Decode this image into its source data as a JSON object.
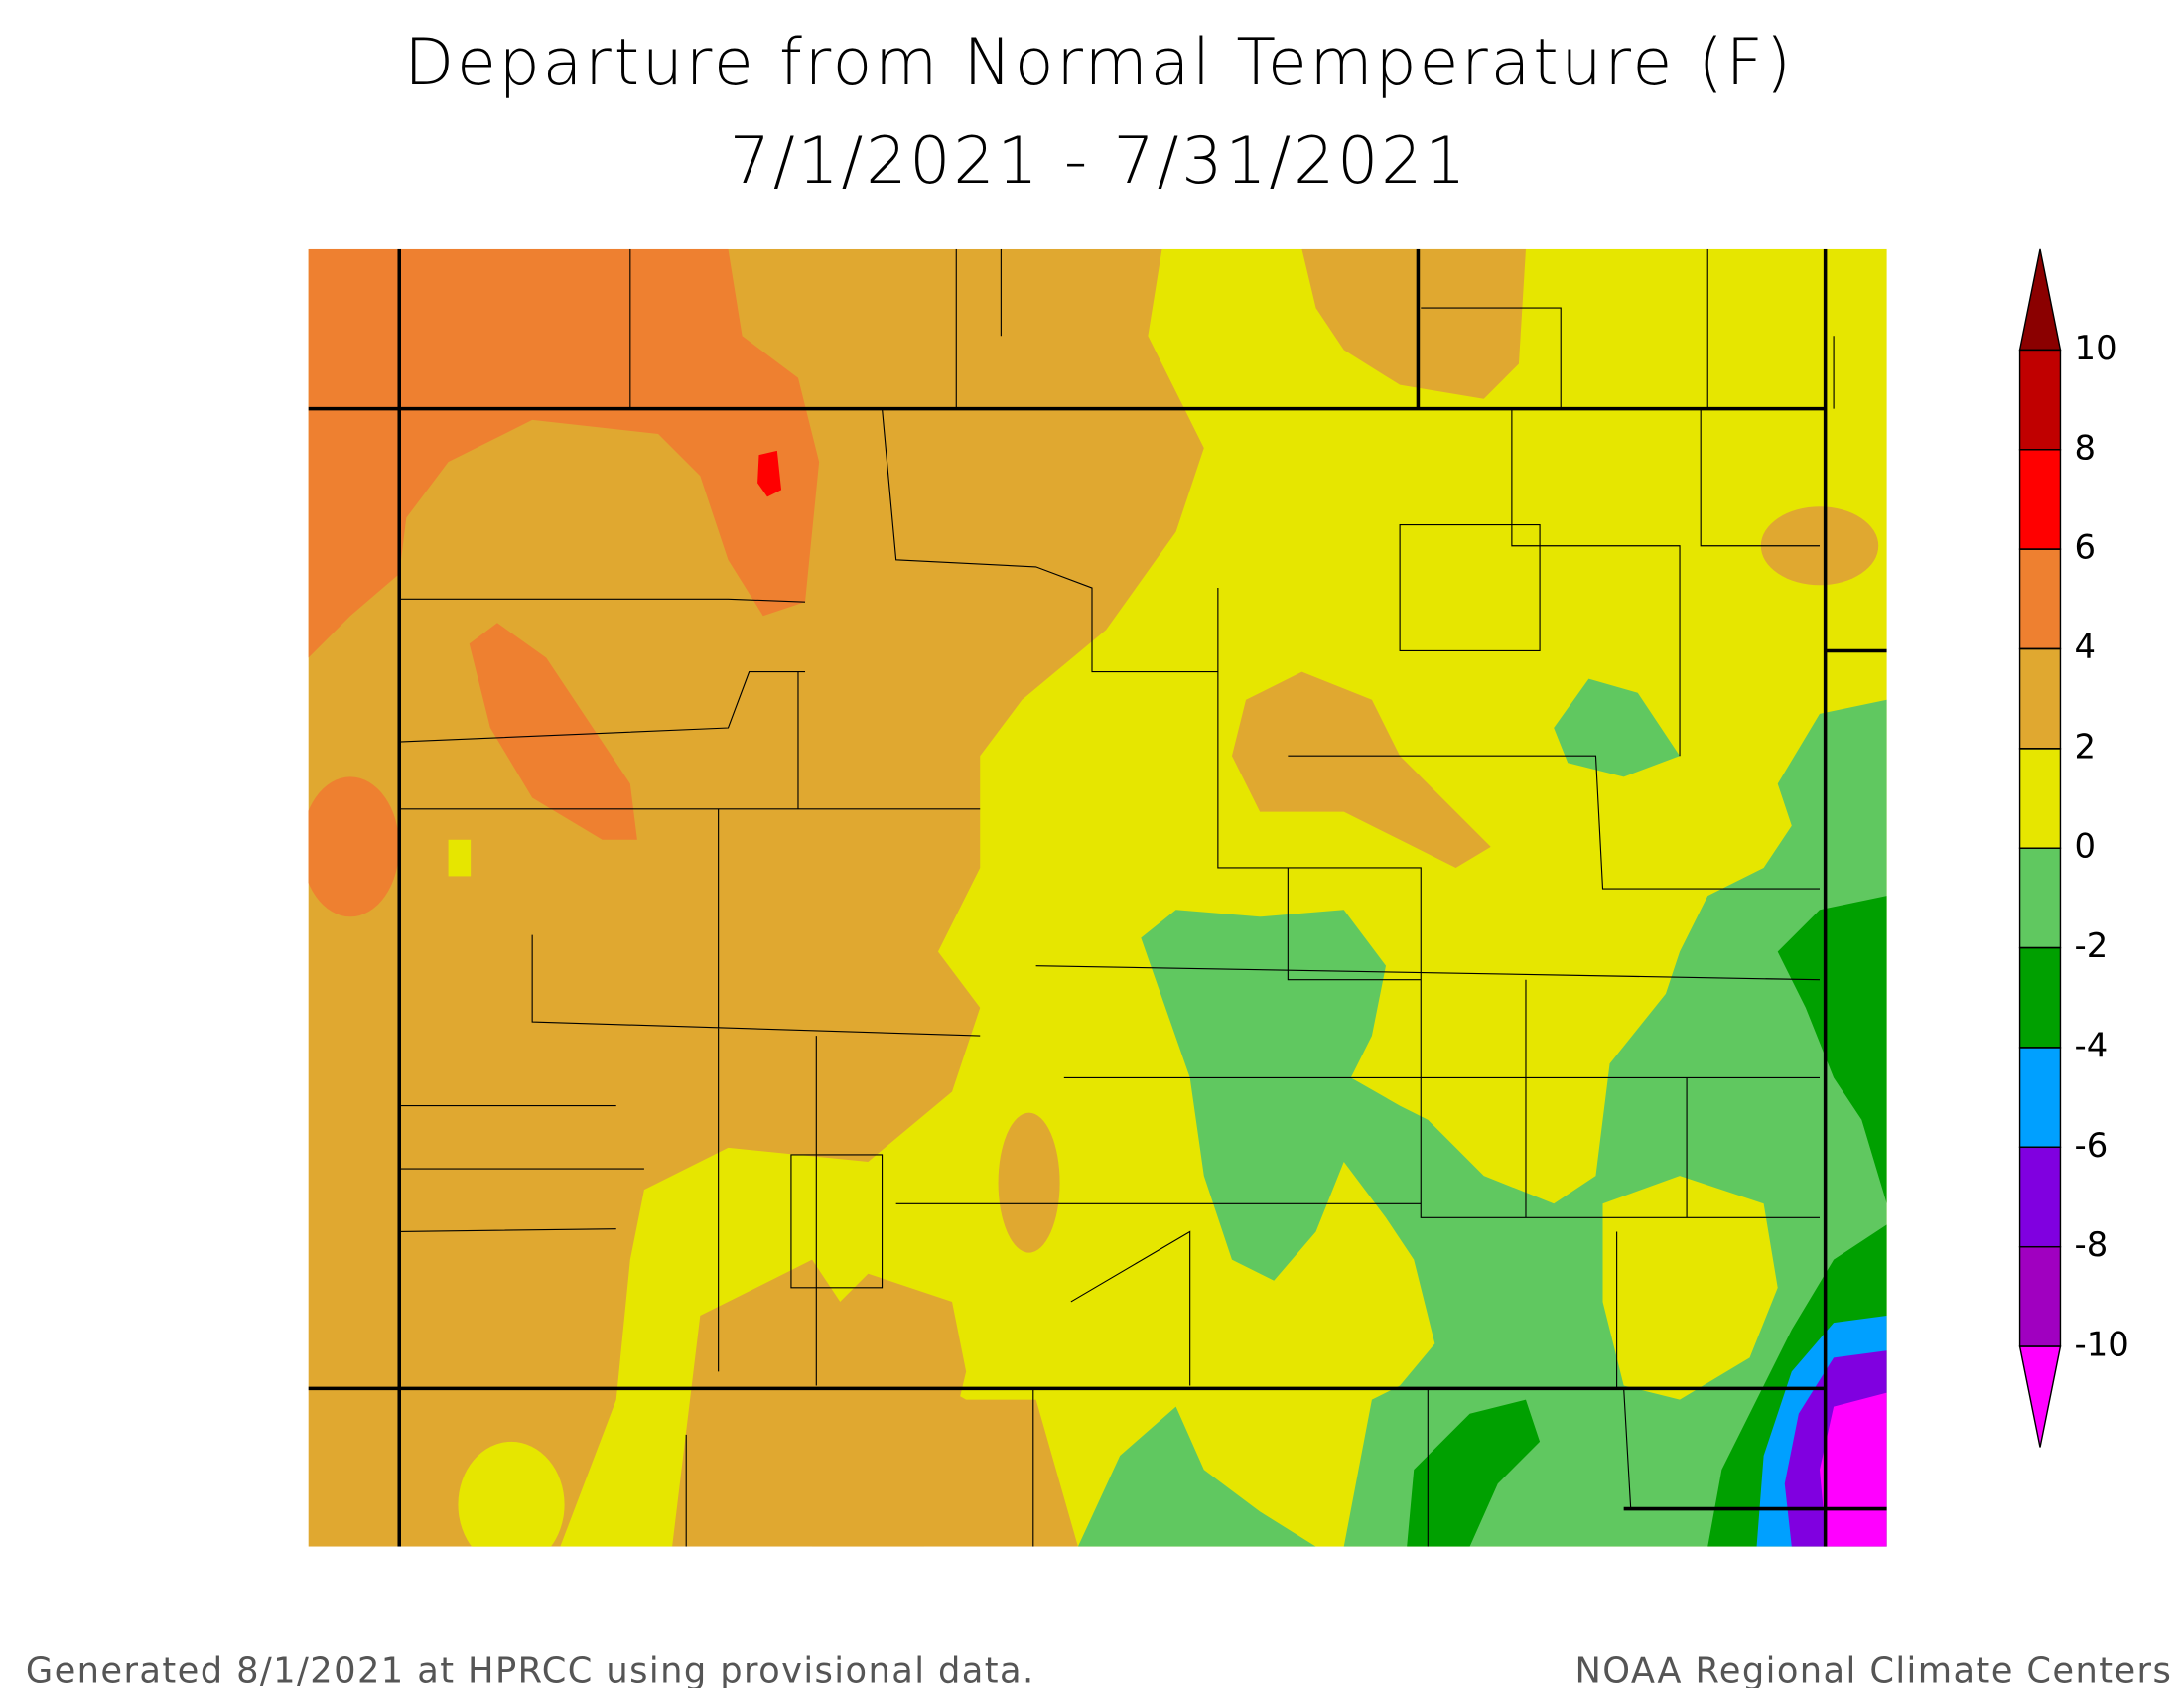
{
  "title": {
    "line1": "Departure from Normal Temperature (F)",
    "line2": "7/1/2021 - 7/31/2021"
  },
  "legend": {
    "ticks": [
      10,
      8,
      6,
      4,
      2,
      0,
      -2,
      -4,
      -6,
      -8,
      -10
    ],
    "colors": [
      "#8b0000",
      "#c00000",
      "#ff0000",
      "#ee8030",
      "#e0a830",
      "#e6e600",
      "#60c860",
      "#00a000",
      "#00a0ff",
      "#8000e0",
      "#a000c0",
      "#ff00ff"
    ]
  },
  "footer": {
    "left": "Generated 8/1/2021 at HPRCC using provisional data.",
    "right": "NOAA Regional Climate Centers"
  }
}
